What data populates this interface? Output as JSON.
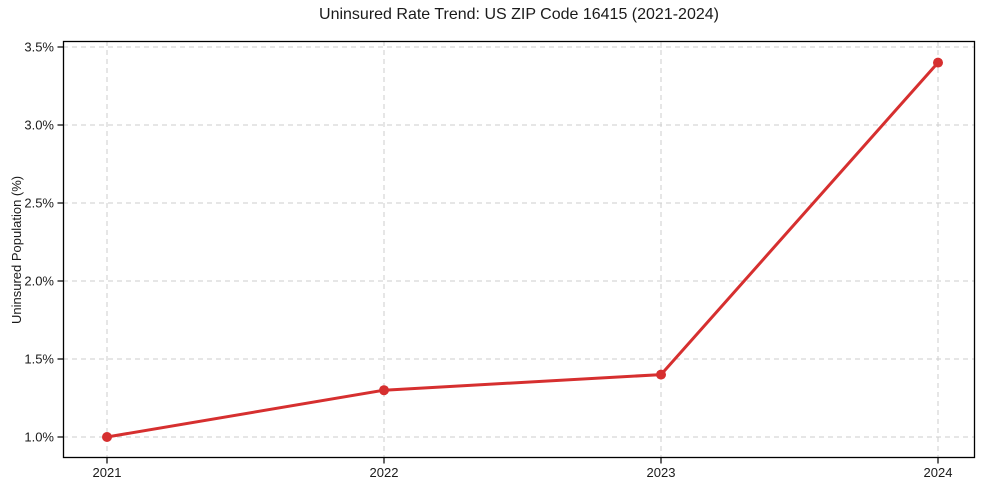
{
  "chart_data": {
    "type": "line",
    "title": "Uninsured Rate Trend: US ZIP Code 16415 (2021-2024)",
    "xlabel": "",
    "ylabel": "Uninsured Population (%)",
    "x": [
      "2021",
      "2022",
      "2023",
      "2024"
    ],
    "values": [
      1.0,
      1.3,
      1.4,
      3.4
    ],
    "unit": "%",
    "x_tick_labels": [
      "2021",
      "2022",
      "2023",
      "2024"
    ],
    "y_ticks": [
      1.0,
      1.5,
      2.0,
      2.5,
      3.0,
      3.5
    ],
    "y_tick_labels": [
      "1.0%",
      "1.5%",
      "2.0%",
      "2.5%",
      "3.0%",
      "3.5%"
    ],
    "ylim": [
      0.87,
      3.53
    ],
    "grid": true,
    "grid_style": "dashed",
    "legend": false,
    "marker": "circle",
    "colors": {
      "line": "#d62f2f",
      "marker": "#d62f2f",
      "grid": "#cdcdcd",
      "axis": "#000000",
      "text": "#1a1a1a",
      "background": "#ffffff"
    }
  }
}
